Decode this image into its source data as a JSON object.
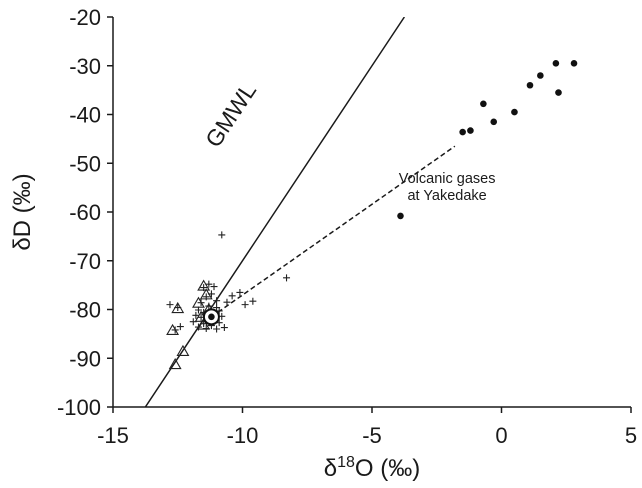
{
  "chart_data": {
    "type": "scatter",
    "xlabel": {
      "prefix": "δ",
      "sup": "18",
      "suffix": "O (‰)"
    },
    "ylabel": "δD (‰)",
    "xlim": [
      -15,
      5
    ],
    "ylim": [
      -100,
      -20
    ],
    "xticks": [
      "-15",
      "-10",
      "-5",
      "0",
      "5"
    ],
    "yticks": [
      "-100",
      "-90",
      "-80",
      "-70",
      "-60",
      "-50",
      "-40",
      "-30",
      "-20"
    ],
    "grid": false,
    "legend": "none",
    "lines": [
      {
        "label": "GMWL",
        "slope": 8,
        "intercept": 10,
        "style": "solid"
      },
      {
        "label": "",
        "points": [
          [
            -11.2,
            -81.5
          ],
          [
            -1.8,
            -46.5
          ]
        ],
        "style": "dashed"
      }
    ],
    "annotations": [
      {
        "lines": [
          "Volcanic gases",
          "at Yakedake"
        ],
        "x": -2.1,
        "y": -54
      }
    ],
    "series": [
      {
        "marker": "filled-circle",
        "points": [
          [
            2.8,
            -29.5
          ],
          [
            2.1,
            -29.5
          ],
          [
            1.5,
            -32
          ],
          [
            1.1,
            -34
          ],
          [
            2.2,
            -35.5
          ],
          [
            0.5,
            -39.5
          ],
          [
            -0.3,
            -41.5
          ],
          [
            -0.7,
            -37.8
          ],
          [
            -1.2,
            -43.3
          ],
          [
            -1.5,
            -43.6
          ],
          [
            -3.9,
            -60.8
          ]
        ]
      },
      {
        "marker": "plus",
        "points": [
          [
            -10.8,
            -64.7
          ],
          [
            -8.3,
            -73.5
          ],
          [
            -9.6,
            -78.3
          ],
          [
            -10.1,
            -76.5
          ],
          [
            -10.4,
            -77.2
          ],
          [
            -9.9,
            -79
          ],
          [
            -10.6,
            -78.5
          ],
          [
            -11.3,
            -74.8
          ],
          [
            -11.1,
            -75.3
          ],
          [
            -11.5,
            -75.5
          ],
          [
            -11.2,
            -76.8
          ],
          [
            -11.4,
            -77.4
          ],
          [
            -11.0,
            -78.2
          ],
          [
            -11.6,
            -78.6
          ],
          [
            -11.3,
            -79.3
          ],
          [
            -11.0,
            -79.6
          ],
          [
            -11.7,
            -80.1
          ],
          [
            -11.5,
            -80.6
          ],
          [
            -11.2,
            -80.7
          ],
          [
            -10.9,
            -80.3
          ],
          [
            -11.8,
            -81.2
          ],
          [
            -11.6,
            -81.6
          ],
          [
            -11.3,
            -82.2
          ],
          [
            -11.1,
            -81.9
          ],
          [
            -10.8,
            -81.4
          ],
          [
            -11.9,
            -82.5
          ],
          [
            -11.5,
            -82.9
          ],
          [
            -11.2,
            -83.3
          ],
          [
            -10.9,
            -82.7
          ],
          [
            -11.7,
            -83.6
          ],
          [
            -11.4,
            -83.9
          ],
          [
            -11.0,
            -84
          ],
          [
            -10.7,
            -83.7
          ],
          [
            -12.5,
            -79.6
          ],
          [
            -12.8,
            -79
          ],
          [
            -12.4,
            -83.5
          ],
          [
            -12.6,
            -84.2
          ]
        ]
      },
      {
        "marker": "open-triangle",
        "points": [
          [
            -11.5,
            -75.2
          ],
          [
            -11.4,
            -77
          ],
          [
            -11.7,
            -78.7
          ],
          [
            -11.3,
            -80
          ],
          [
            -12.5,
            -79.8
          ],
          [
            -11.6,
            -81.6
          ],
          [
            -11.5,
            -83.2
          ],
          [
            -12.7,
            -84.3
          ],
          [
            -12.3,
            -88.6
          ],
          [
            -12.6,
            -91.3
          ]
        ]
      },
      {
        "marker": "circled-dot",
        "points": [
          [
            -11.2,
            -81.5
          ]
        ]
      }
    ]
  }
}
